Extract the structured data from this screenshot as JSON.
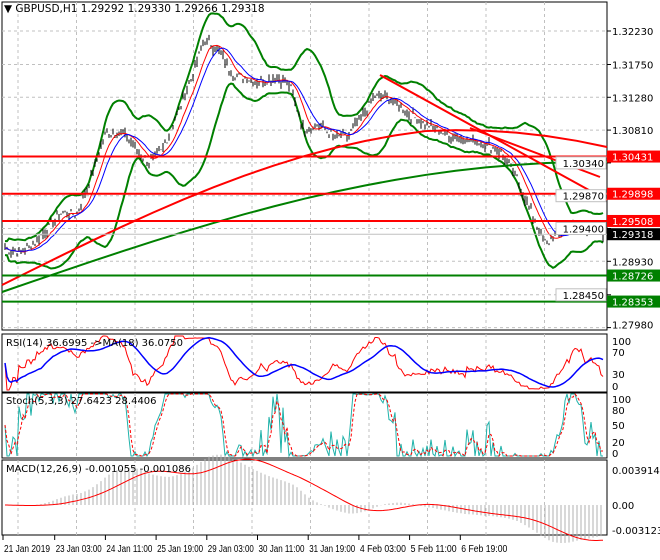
{
  "header": {
    "symbol": "GBPUSD,H1",
    "open": "1.29292",
    "high": "1.29330",
    "low": "1.29266",
    "close": "1.29318"
  },
  "chart_data": [
    {
      "type": "line",
      "title": "GBPUSD,H1",
      "ylim": [
        1.2798,
        1.3223
      ],
      "yticks": [
        "1.32230",
        "1.31750",
        "1.31280",
        "1.30810",
        "1.30340",
        "1.29870",
        "1.29400",
        "1.28930",
        "1.28450",
        "1.27980"
      ],
      "closes": [
        1.2912,
        1.2905,
        1.2918,
        1.294,
        1.2964,
        1.296,
        1.301,
        1.3075,
        1.308,
        1.306,
        1.3035,
        1.305,
        1.31,
        1.315,
        1.321,
        1.3195,
        1.316,
        1.3155,
        1.315,
        1.3158,
        1.3145,
        1.308,
        1.309,
        1.3072,
        1.307,
        1.31,
        1.313,
        1.3125,
        1.311,
        1.3095,
        1.3085,
        1.3075,
        1.307,
        1.3065,
        1.306,
        1.3045,
        1.301,
        1.296,
        1.2918,
        1.2935,
        1.2948,
        1.294,
        1.2932
      ],
      "levels": [
        {
          "value": 1.30431,
          "label": "1.30431",
          "color": "#ff0000"
        },
        {
          "value": 1.29898,
          "label": "1.29898",
          "color": "#ff0000"
        },
        {
          "value": 1.29508,
          "label": "1.29508",
          "color": "#ff0000"
        },
        {
          "value": 1.28726,
          "label": "1.28726",
          "color": "#008000"
        },
        {
          "value": 1.28353,
          "label": "1.28353",
          "color": "#008000"
        }
      ],
      "current": {
        "value": 1.29318,
        "label": "1.29318"
      }
    },
    {
      "type": "line",
      "title": "RSI(14) 36.6995  ->MA(18) 36.0750",
      "yticks": [
        "100",
        "70",
        "30",
        "0"
      ]
    },
    {
      "type": "line",
      "title": "Stoch(5,3,3) 27.6423 28.4406",
      "yticks": [
        "100",
        "80",
        "50",
        "20",
        "0"
      ]
    },
    {
      "type": "bar",
      "title": "MACD(12,26,9) -0.001055 -0.001086",
      "yticks": [
        "0.003914",
        "0.00",
        "-0.003123"
      ]
    }
  ],
  "xticks": [
    "21 Jan 2019",
    "23 Jan 03:00",
    "24 Jan 11:00",
    "25 Jan 19:00",
    "29 Jan 03:00",
    "30 Jan 11:00",
    "31 Jan 19:00",
    "4 Feb 03:00",
    "5 Feb 11:00",
    "6 Feb 19:00"
  ],
  "colors": {
    "up": "#000000",
    "band": "#008000",
    "ma": "#ff0000",
    "signal": "#0000ff",
    "stoch": "#20b2aa"
  }
}
